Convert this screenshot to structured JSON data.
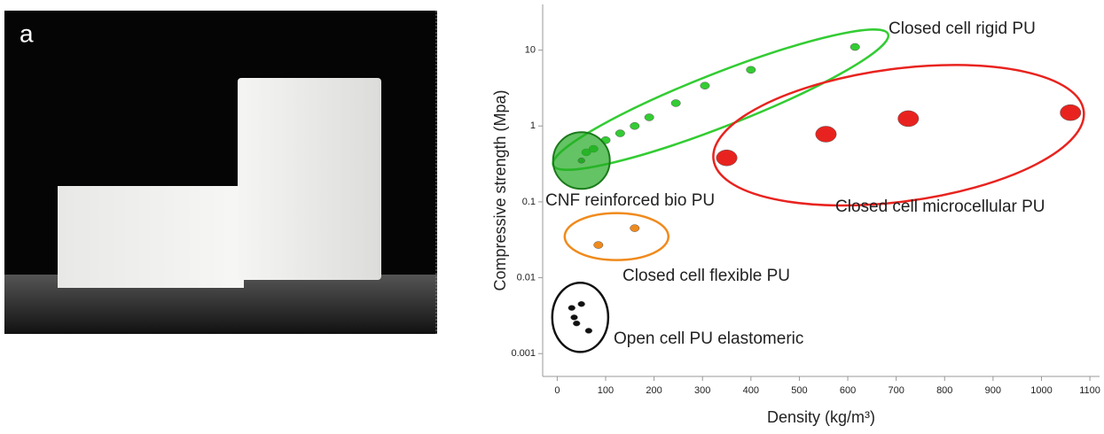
{
  "panel_label": "a",
  "chart_data": {
    "type": "scatter",
    "xlabel": "Density (kg/m³)",
    "ylabel": "Compressive strength (Mpa)",
    "xlim": [
      -30,
      1120
    ],
    "xticks": [
      0,
      100,
      200,
      300,
      400,
      500,
      600,
      700,
      800,
      900,
      1000,
      1100
    ],
    "ylim": [
      0.0005,
      40
    ],
    "yticks": [
      0.001,
      0.01,
      0.1,
      1,
      10
    ],
    "ylog": true,
    "series": [
      {
        "name": "Closed cell rigid PU",
        "color": "#33cc33",
        "x": [
          60,
          75,
          100,
          130,
          160,
          190,
          245,
          305,
          400,
          615
        ],
        "y": [
          0.45,
          0.5,
          0.65,
          0.8,
          1.0,
          1.3,
          2.0,
          3.4,
          5.5,
          11
        ]
      },
      {
        "name": "CNF reinforced bio PU",
        "color": "#22aa22",
        "x": [
          50
        ],
        "y": [
          0.35
        ]
      },
      {
        "name": "Closed cell microcellular PU",
        "color": "#e8231f",
        "x": [
          350,
          555,
          725,
          1060
        ],
        "y": [
          0.38,
          0.78,
          1.25,
          1.5
        ]
      },
      {
        "name": "Closed cell flexible PU",
        "color": "#f08a1c",
        "x": [
          85,
          160
        ],
        "y": [
          0.027,
          0.045
        ]
      },
      {
        "name": "Open cell PU elastomeric",
        "color": "#111111",
        "x": [
          30,
          35,
          40,
          50,
          65
        ],
        "y": [
          0.004,
          0.003,
          0.0025,
          0.0045,
          0.002
        ]
      }
    ]
  }
}
